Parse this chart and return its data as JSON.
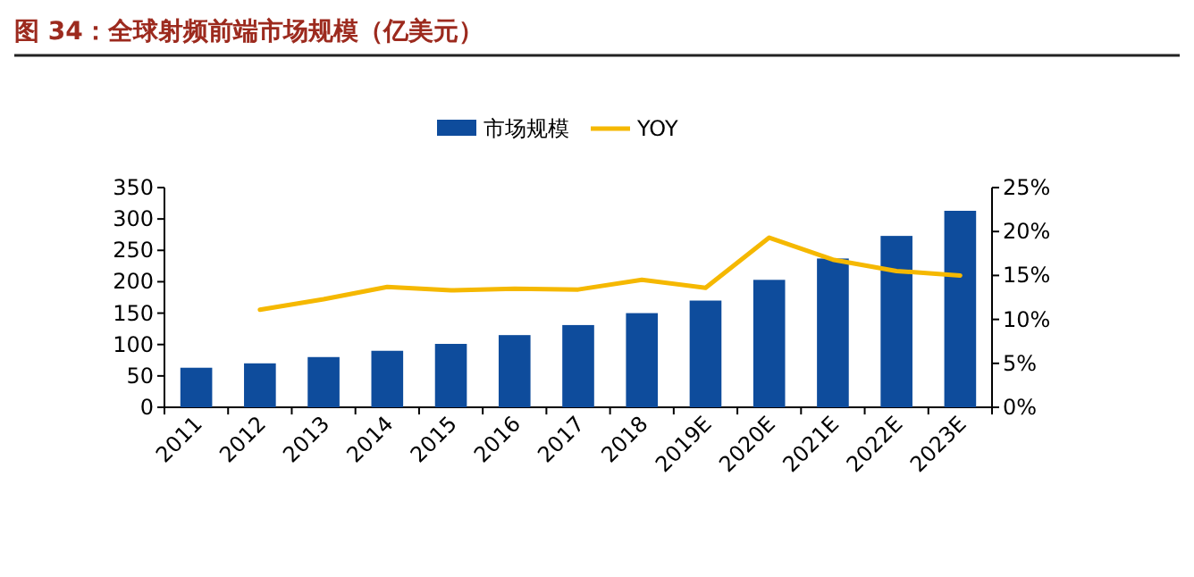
{
  "chart_data": {
    "type": "bar",
    "title": "图 34：全球射频前端市场规模（亿美元）",
    "categories": [
      "2011",
      "2012",
      "2013",
      "2014",
      "2015",
      "2016",
      "2017",
      "2018",
      "2019E",
      "2020E",
      "2021E",
      "2022E",
      "2023E"
    ],
    "series": [
      {
        "name": "市场规模",
        "color": "#0e4c9c",
        "values": [
          63,
          70,
          80,
          90,
          101,
          115,
          131,
          150,
          170,
          203,
          237,
          273,
          313
        ]
      },
      {
        "name": "YOY",
        "type": "line",
        "axis": "y2",
        "color": "#f5b800",
        "values": [
          null,
          11.1,
          12.3,
          13.7,
          13.3,
          13.5,
          13.4,
          14.5,
          13.6,
          19.3,
          16.8,
          15.5,
          15.0
        ]
      }
    ],
    "ylim": [
      0,
      350
    ],
    "yticks": [
      0,
      50,
      100,
      150,
      200,
      250,
      300,
      350
    ],
    "y2lim": [
      0,
      25
    ],
    "y2ticks": [
      {
        "value": 0,
        "label": "0%"
      },
      {
        "value": 5,
        "label": "5%"
      },
      {
        "value": 10,
        "label": "10%"
      },
      {
        "value": 15,
        "label": "15%"
      },
      {
        "value": 20,
        "label": "20%"
      },
      {
        "value": 25,
        "label": "25%"
      }
    ],
    "legend": "top",
    "grid": false
  }
}
